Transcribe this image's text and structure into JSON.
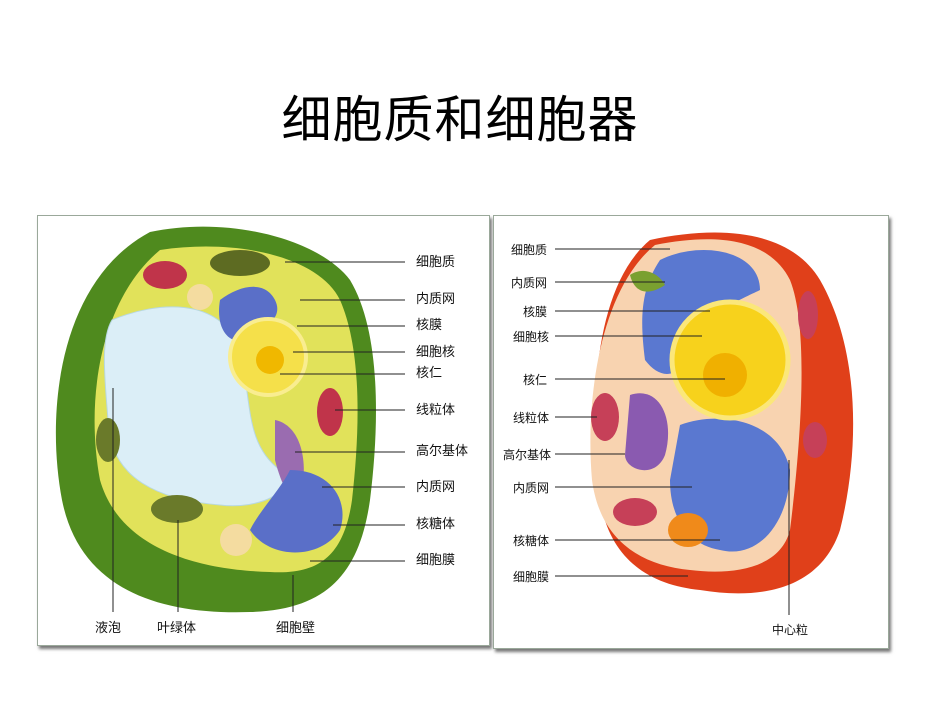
{
  "title": "细胞质和细胞器",
  "plant_cell": {
    "labels": [
      "细胞质",
      "内质网",
      "核膜",
      "细胞核",
      "核仁",
      "线粒体",
      "高尔基体",
      "内质网",
      "核糖体",
      "细胞膜"
    ],
    "bottom_labels": [
      "液泡",
      "叶绿体",
      "细胞壁"
    ],
    "colors": {
      "wall": "#4f8a1e",
      "cytoplasm": "#e3e35a",
      "vacuole": "#d9ecf5",
      "er": "#5a6fc8",
      "mitochondria": "#c0344a",
      "nucleus": "#f5e04a"
    }
  },
  "animal_cell": {
    "labels": [
      "细胞质",
      "内质网",
      "核膜",
      "细胞核",
      "核仁",
      "线粒体",
      "高尔基体",
      "内质网",
      "核糖体",
      "细胞膜"
    ],
    "bottom_labels": [
      "中心粒"
    ],
    "colors": {
      "membrane": "#e0401a",
      "cytoplasm": "#f8d3b0",
      "er": "#5a78d0",
      "nucleus": "#f7d21c",
      "golgi": "#8a5ab0"
    }
  }
}
